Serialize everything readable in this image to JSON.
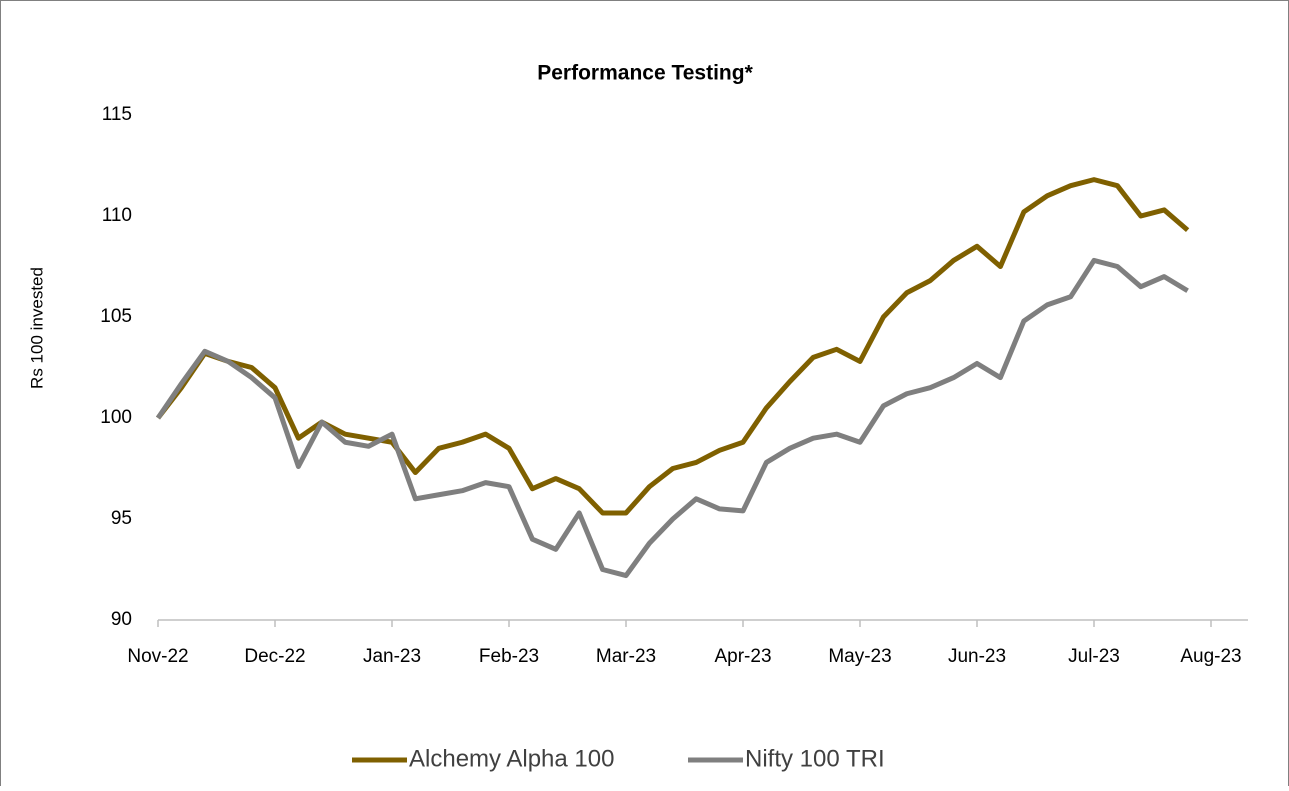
{
  "chart_data": {
    "type": "line",
    "title": "Performance Testing*",
    "y_label": "Rs 100 invested",
    "categories": [
      "Nov-22",
      null,
      null,
      null,
      null,
      "Dec-22",
      null,
      null,
      null,
      null,
      "Jan-23",
      null,
      null,
      null,
      null,
      "Feb-23",
      null,
      null,
      null,
      null,
      "Mar-23",
      null,
      null,
      null,
      null,
      "Apr-23",
      null,
      null,
      null,
      null,
      "May-23",
      null,
      null,
      null,
      null,
      "Jun-23",
      null,
      null,
      null,
      null,
      "Jul-23",
      null,
      null,
      null,
      null,
      "Aug-23"
    ],
    "series": [
      {
        "name": "Alchemy Alpha 100",
        "color": "#7f6000",
        "values": [
          100,
          101.5,
          103.2,
          102.8,
          102.5,
          101.5,
          99.0,
          99.8,
          99.2,
          99.0,
          98.8,
          97.3,
          98.5,
          98.8,
          99.2,
          98.5,
          96.5,
          97.0,
          96.5,
          95.3,
          95.3,
          96.6,
          97.5,
          97.8,
          98.4,
          98.8,
          100.5,
          101.8,
          103.0,
          103.4,
          102.8,
          105.0,
          106.2,
          106.8,
          107.8,
          108.5,
          107.5,
          110.2,
          111.0,
          111.5,
          111.8,
          111.5,
          110.0,
          110.3,
          109.3,
          null
        ]
      },
      {
        "name": "Nifty 100 TRI",
        "color": "#7f7f7f",
        "values": [
          100,
          101.7,
          103.3,
          102.8,
          102.0,
          101.0,
          97.6,
          99.8,
          98.8,
          98.6,
          99.2,
          96.0,
          96.2,
          96.4,
          96.8,
          96.6,
          94.0,
          93.5,
          95.3,
          92.5,
          92.2,
          93.8,
          95.0,
          96.0,
          95.5,
          95.4,
          97.8,
          98.5,
          99.0,
          99.2,
          98.8,
          100.6,
          101.2,
          101.5,
          102.0,
          102.7,
          102.0,
          104.8,
          105.6,
          106.0,
          107.8,
          107.5,
          106.5,
          107.0,
          106.3,
          null
        ]
      }
    ],
    "ylim": [
      90,
      115
    ],
    "yticks": [
      90,
      95,
      100,
      105,
      110,
      115
    ],
    "grid": false,
    "legend": "bottom"
  }
}
